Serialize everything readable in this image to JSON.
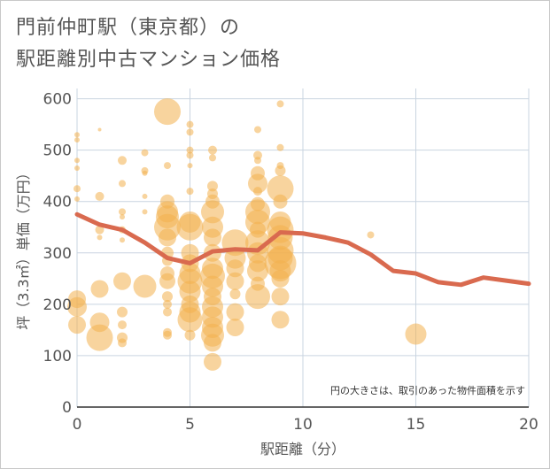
{
  "title_line1": "門前仲町駅（東京都）の",
  "title_line2": "駅距離別中古マンション価格",
  "note": "円の大きさは、取引のあった物件面積を示す",
  "chart_data": {
    "type": "scatter",
    "xlabel": "駅距離（分）",
    "ylabel": "坪（3.3㎡）単価（万円）",
    "xlim": [
      0,
      20
    ],
    "ylim": [
      0,
      620
    ],
    "x_ticks": [
      "0",
      "5",
      "10",
      "15",
      "20"
    ],
    "y_ticks": [
      "0",
      "100",
      "200",
      "300",
      "400",
      "500",
      "600"
    ],
    "x_tick_values": [
      0,
      5,
      10,
      15,
      20
    ],
    "y_tick_values": [
      0,
      100,
      200,
      300,
      400,
      500,
      600
    ],
    "colors": {
      "bubble": "#f2b04e",
      "line": "#d96a4f",
      "grid": "#c9d4e0"
    },
    "points": [
      {
        "x": 0,
        "y": 530,
        "r": 3
      },
      {
        "x": 0,
        "y": 520,
        "r": 3
      },
      {
        "x": 0,
        "y": 480,
        "r": 3
      },
      {
        "x": 0,
        "y": 465,
        "r": 3
      },
      {
        "x": 0,
        "y": 425,
        "r": 4
      },
      {
        "x": 0,
        "y": 405,
        "r": 3
      },
      {
        "x": 0,
        "y": 210,
        "r": 10
      },
      {
        "x": 0,
        "y": 195,
        "r": 11
      },
      {
        "x": 0,
        "y": 160,
        "r": 10
      },
      {
        "x": 1,
        "y": 540,
        "r": 2
      },
      {
        "x": 1,
        "y": 410,
        "r": 5
      },
      {
        "x": 1,
        "y": 345,
        "r": 5
      },
      {
        "x": 1,
        "y": 330,
        "r": 3
      },
      {
        "x": 1,
        "y": 230,
        "r": 10
      },
      {
        "x": 1,
        "y": 165,
        "r": 11
      },
      {
        "x": 1,
        "y": 135,
        "r": 15
      },
      {
        "x": 2,
        "y": 480,
        "r": 5
      },
      {
        "x": 2,
        "y": 435,
        "r": 4
      },
      {
        "x": 2,
        "y": 380,
        "r": 4
      },
      {
        "x": 2,
        "y": 370,
        "r": 3
      },
      {
        "x": 2,
        "y": 345,
        "r": 4
      },
      {
        "x": 2,
        "y": 325,
        "r": 3
      },
      {
        "x": 2,
        "y": 245,
        "r": 10
      },
      {
        "x": 2,
        "y": 185,
        "r": 6
      },
      {
        "x": 2,
        "y": 160,
        "r": 5
      },
      {
        "x": 2,
        "y": 135,
        "r": 6
      },
      {
        "x": 2,
        "y": 125,
        "r": 5
      },
      {
        "x": 3,
        "y": 495,
        "r": 4
      },
      {
        "x": 3,
        "y": 460,
        "r": 4
      },
      {
        "x": 3,
        "y": 455,
        "r": 3
      },
      {
        "x": 3,
        "y": 410,
        "r": 3
      },
      {
        "x": 3,
        "y": 380,
        "r": 3
      },
      {
        "x": 3,
        "y": 235,
        "r": 13
      },
      {
        "x": 4,
        "y": 575,
        "r": 15
      },
      {
        "x": 4,
        "y": 470,
        "r": 4
      },
      {
        "x": 4,
        "y": 400,
        "r": 8
      },
      {
        "x": 4,
        "y": 380,
        "r": 12
      },
      {
        "x": 4,
        "y": 370,
        "r": 13
      },
      {
        "x": 4,
        "y": 350,
        "r": 15
      },
      {
        "x": 4,
        "y": 330,
        "r": 10
      },
      {
        "x": 4,
        "y": 300,
        "r": 7
      },
      {
        "x": 4,
        "y": 285,
        "r": 6
      },
      {
        "x": 4,
        "y": 260,
        "r": 8
      },
      {
        "x": 4,
        "y": 245,
        "r": 9
      },
      {
        "x": 4,
        "y": 215,
        "r": 6
      },
      {
        "x": 4,
        "y": 200,
        "r": 5
      },
      {
        "x": 4,
        "y": 185,
        "r": 5
      },
      {
        "x": 4,
        "y": 145,
        "r": 5
      },
      {
        "x": 4,
        "y": 140,
        "r": 5
      },
      {
        "x": 5,
        "y": 550,
        "r": 4
      },
      {
        "x": 5,
        "y": 535,
        "r": 4
      },
      {
        "x": 5,
        "y": 500,
        "r": 4
      },
      {
        "x": 5,
        "y": 490,
        "r": 4
      },
      {
        "x": 5,
        "y": 470,
        "r": 3
      },
      {
        "x": 5,
        "y": 420,
        "r": 4
      },
      {
        "x": 5,
        "y": 360,
        "r": 12
      },
      {
        "x": 5,
        "y": 350,
        "r": 15
      },
      {
        "x": 5,
        "y": 300,
        "r": 10
      },
      {
        "x": 5,
        "y": 280,
        "r": 10
      },
      {
        "x": 5,
        "y": 260,
        "r": 12
      },
      {
        "x": 5,
        "y": 245,
        "r": 14
      },
      {
        "x": 5,
        "y": 225,
        "r": 12
      },
      {
        "x": 5,
        "y": 200,
        "r": 10
      },
      {
        "x": 5,
        "y": 185,
        "r": 12
      },
      {
        "x": 5,
        "y": 170,
        "r": 14
      },
      {
        "x": 5,
        "y": 140,
        "r": 6
      },
      {
        "x": 6,
        "y": 500,
        "r": 5
      },
      {
        "x": 6,
        "y": 485,
        "r": 4
      },
      {
        "x": 6,
        "y": 430,
        "r": 6
      },
      {
        "x": 6,
        "y": 415,
        "r": 6
      },
      {
        "x": 6,
        "y": 400,
        "r": 8
      },
      {
        "x": 6,
        "y": 380,
        "r": 13
      },
      {
        "x": 6,
        "y": 350,
        "r": 12
      },
      {
        "x": 6,
        "y": 330,
        "r": 10
      },
      {
        "x": 6,
        "y": 300,
        "r": 10
      },
      {
        "x": 6,
        "y": 270,
        "r": 12
      },
      {
        "x": 6,
        "y": 255,
        "r": 14
      },
      {
        "x": 6,
        "y": 235,
        "r": 12
      },
      {
        "x": 6,
        "y": 215,
        "r": 10
      },
      {
        "x": 6,
        "y": 195,
        "r": 12
      },
      {
        "x": 6,
        "y": 175,
        "r": 12
      },
      {
        "x": 6,
        "y": 155,
        "r": 12
      },
      {
        "x": 6,
        "y": 140,
        "r": 13
      },
      {
        "x": 6,
        "y": 125,
        "r": 10
      },
      {
        "x": 6,
        "y": 88,
        "r": 10
      },
      {
        "x": 7,
        "y": 320,
        "r": 15
      },
      {
        "x": 7,
        "y": 290,
        "r": 12
      },
      {
        "x": 7,
        "y": 270,
        "r": 10
      },
      {
        "x": 7,
        "y": 245,
        "r": 10
      },
      {
        "x": 7,
        "y": 220,
        "r": 6
      },
      {
        "x": 7,
        "y": 185,
        "r": 10
      },
      {
        "x": 7,
        "y": 155,
        "r": 10
      },
      {
        "x": 8,
        "y": 540,
        "r": 4
      },
      {
        "x": 8,
        "y": 490,
        "r": 5
      },
      {
        "x": 8,
        "y": 480,
        "r": 4
      },
      {
        "x": 8,
        "y": 455,
        "r": 8
      },
      {
        "x": 8,
        "y": 435,
        "r": 11
      },
      {
        "x": 8,
        "y": 420,
        "r": 5
      },
      {
        "x": 8,
        "y": 395,
        "r": 8
      },
      {
        "x": 8,
        "y": 380,
        "r": 14
      },
      {
        "x": 8,
        "y": 360,
        "r": 14
      },
      {
        "x": 8,
        "y": 345,
        "r": 9
      },
      {
        "x": 8,
        "y": 320,
        "r": 14
      },
      {
        "x": 8,
        "y": 300,
        "r": 12
      },
      {
        "x": 8,
        "y": 280,
        "r": 10
      },
      {
        "x": 8,
        "y": 265,
        "r": 12
      },
      {
        "x": 8,
        "y": 240,
        "r": 8
      },
      {
        "x": 8,
        "y": 215,
        "r": 14
      },
      {
        "x": 9,
        "y": 590,
        "r": 4
      },
      {
        "x": 9,
        "y": 505,
        "r": 4
      },
      {
        "x": 9,
        "y": 470,
        "r": 4
      },
      {
        "x": 9,
        "y": 460,
        "r": 6
      },
      {
        "x": 9,
        "y": 425,
        "r": 15
      },
      {
        "x": 9,
        "y": 400,
        "r": 8
      },
      {
        "x": 9,
        "y": 360,
        "r": 12
      },
      {
        "x": 9,
        "y": 345,
        "r": 15
      },
      {
        "x": 9,
        "y": 330,
        "r": 14
      },
      {
        "x": 9,
        "y": 305,
        "r": 15
      },
      {
        "x": 9,
        "y": 290,
        "r": 14
      },
      {
        "x": 9,
        "y": 280,
        "r": 18
      },
      {
        "x": 9,
        "y": 265,
        "r": 12
      },
      {
        "x": 9,
        "y": 250,
        "r": 10
      },
      {
        "x": 9,
        "y": 215,
        "r": 10
      },
      {
        "x": 9,
        "y": 170,
        "r": 10
      },
      {
        "x": 13,
        "y": 335,
        "r": 4
      },
      {
        "x": 15,
        "y": 142,
        "r": 12
      }
    ],
    "line": {
      "x": [
        0,
        1,
        2,
        3,
        4,
        5,
        6,
        7,
        8,
        9,
        10,
        11,
        12,
        13,
        14,
        15,
        16,
        17,
        18,
        19,
        20
      ],
      "y": [
        375,
        355,
        345,
        320,
        290,
        280,
        303,
        307,
        305,
        340,
        338,
        330,
        320,
        297,
        265,
        260,
        243,
        238,
        252,
        246,
        240
      ]
    }
  }
}
